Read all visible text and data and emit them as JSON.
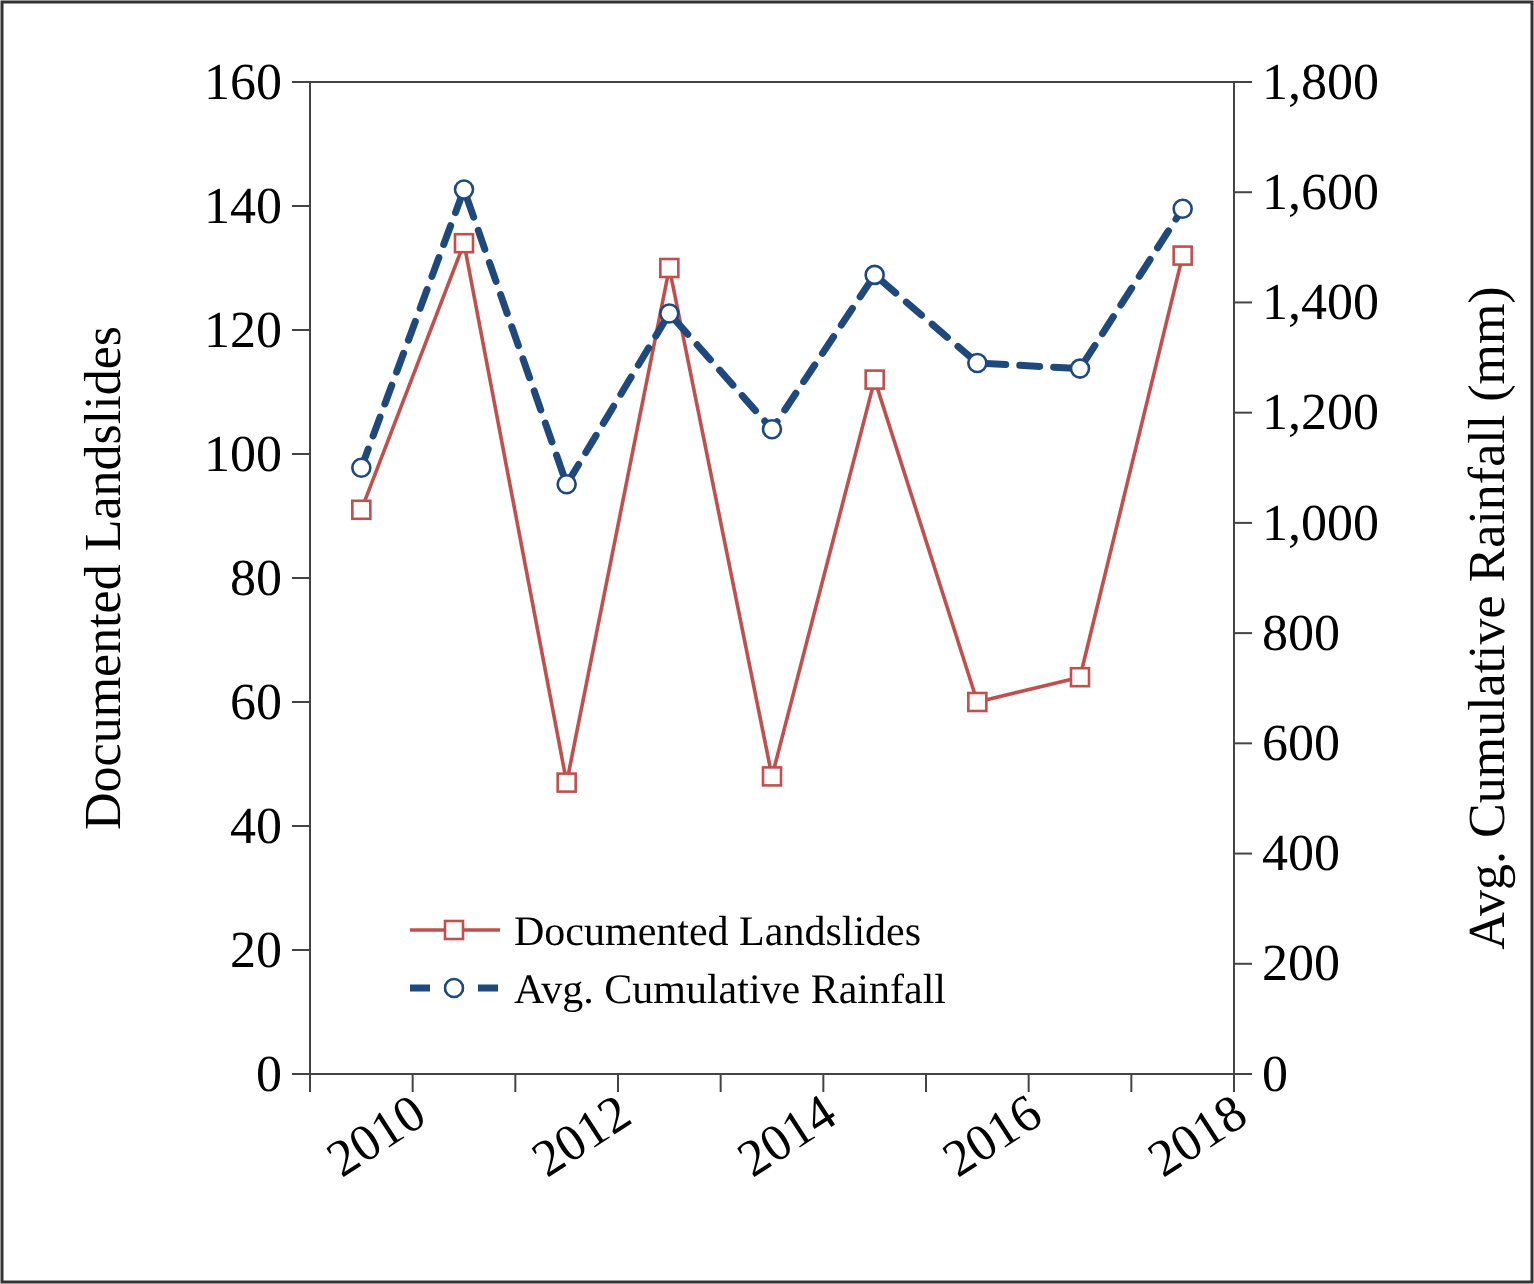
{
  "chart_data": {
    "type": "line",
    "categories": [
      "2010",
      null,
      "2012",
      null,
      "2014",
      null,
      "2016",
      null,
      "2018"
    ],
    "ylabel": "Documented Landslides",
    "y2label": "Avg. Cumulative Rainfall (mm)",
    "ylim": [
      0,
      160
    ],
    "yticks": [
      0,
      20,
      40,
      60,
      80,
      100,
      120,
      140,
      160
    ],
    "y2lim": [
      0,
      1800
    ],
    "y2ticks": [
      {
        "value": 0,
        "label": "0"
      },
      {
        "value": 200,
        "label": "200"
      },
      {
        "value": 400,
        "label": "400"
      },
      {
        "value": 600,
        "label": "600"
      },
      {
        "value": 800,
        "label": "800"
      },
      {
        "value": 1000,
        "label": "1,000"
      },
      {
        "value": 1200,
        "label": "1,200"
      },
      {
        "value": 1400,
        "label": "1,400"
      },
      {
        "value": 1600,
        "label": "1,600"
      },
      {
        "value": 1800,
        "label": "1,800"
      }
    ],
    "series": [
      {
        "name": "Documented Landslides",
        "color": "#c0504d",
        "marker": "square",
        "line_style": "solid",
        "values": [
          91,
          134,
          47,
          130,
          48,
          112,
          60,
          64,
          132
        ]
      },
      {
        "name": "Avg. Cumulative Rainfall",
        "color": "#1f497d",
        "marker": "circle",
        "line_style": "dashed",
        "axis": "y2",
        "values": [
          1100,
          1605,
          1070,
          1380,
          1170,
          1450,
          1290,
          1280,
          1570
        ]
      }
    ],
    "legend": "bottom left",
    "grid": false
  }
}
